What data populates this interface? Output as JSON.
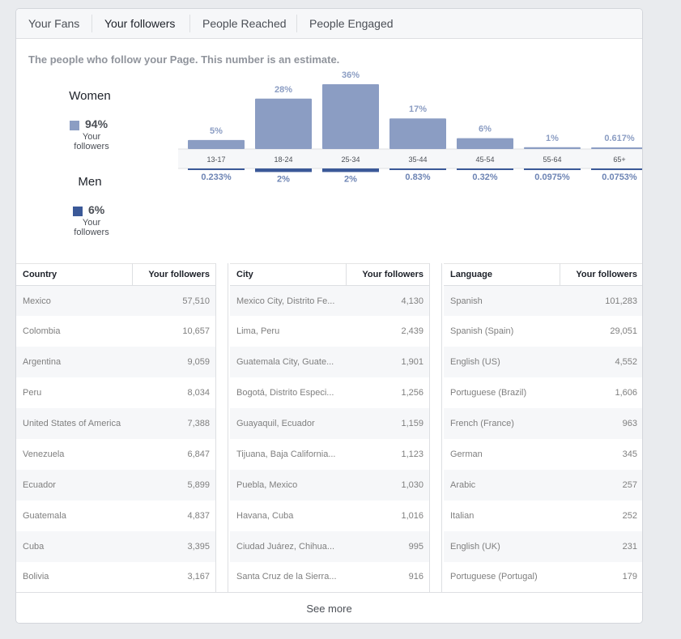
{
  "tabs": [
    "Your Fans",
    "Your followers",
    "People Reached",
    "People Engaged"
  ],
  "active_tab": "Your followers",
  "description": "The people who follow your Page. This number is an estimate.",
  "women": {
    "label": "Women",
    "percent": "94%",
    "sub": "Your followers",
    "color": "#8b9dc3"
  },
  "men": {
    "label": "Men",
    "percent": "6%",
    "sub": "Your followers",
    "color": "#3b5998"
  },
  "chart_data": {
    "type": "bar",
    "categories": [
      "13-17",
      "18-24",
      "25-34",
      "35-44",
      "45-54",
      "55-64",
      "65+"
    ],
    "series": [
      {
        "name": "Women",
        "values": [
          5,
          28,
          36,
          17,
          6,
          1,
          0.617
        ],
        "labels": [
          "5%",
          "28%",
          "36%",
          "17%",
          "6%",
          "1%",
          "0.617%"
        ],
        "color": "#8b9dc3"
      },
      {
        "name": "Men",
        "values": [
          0.233,
          2,
          2,
          0.83,
          0.32,
          0.0975,
          0.0753
        ],
        "labels": [
          "0.233%",
          "2%",
          "2%",
          "0.83%",
          "0.32%",
          "0.0975%",
          "0.0753%"
        ],
        "color": "#3b5998"
      }
    ]
  },
  "tables": [
    {
      "headers": [
        "Country",
        "Your followers"
      ],
      "rows": [
        [
          "Mexico",
          "57,510"
        ],
        [
          "Colombia",
          "10,657"
        ],
        [
          "Argentina",
          "9,059"
        ],
        [
          "Peru",
          "8,034"
        ],
        [
          "United States of America",
          "7,388"
        ],
        [
          "Venezuela",
          "6,847"
        ],
        [
          "Ecuador",
          "5,899"
        ],
        [
          "Guatemala",
          "4,837"
        ],
        [
          "Cuba",
          "3,395"
        ],
        [
          "Bolivia",
          "3,167"
        ]
      ]
    },
    {
      "headers": [
        "City",
        "Your followers"
      ],
      "rows": [
        [
          "Mexico City, Distrito Fe...",
          "4,130"
        ],
        [
          "Lima, Peru",
          "2,439"
        ],
        [
          "Guatemala City, Guate...",
          "1,901"
        ],
        [
          "Bogotá, Distrito Especi...",
          "1,256"
        ],
        [
          "Guayaquil, Ecuador",
          "1,159"
        ],
        [
          "Tijuana, Baja California...",
          "1,123"
        ],
        [
          "Puebla, Mexico",
          "1,030"
        ],
        [
          "Havana, Cuba",
          "1,016"
        ],
        [
          "Ciudad Juárez, Chihua...",
          "995"
        ],
        [
          "Santa Cruz de la Sierra...",
          "916"
        ]
      ]
    },
    {
      "headers": [
        "Language",
        "Your followers"
      ],
      "rows": [
        [
          "Spanish",
          "101,283"
        ],
        [
          "Spanish (Spain)",
          "29,051"
        ],
        [
          "English (US)",
          "4,552"
        ],
        [
          "Portuguese (Brazil)",
          "1,606"
        ],
        [
          "French (France)",
          "963"
        ],
        [
          "German",
          "345"
        ],
        [
          "Arabic",
          "257"
        ],
        [
          "Italian",
          "252"
        ],
        [
          "English (UK)",
          "231"
        ],
        [
          "Portuguese (Portugal)",
          "179"
        ]
      ]
    }
  ],
  "see_more": "See more"
}
